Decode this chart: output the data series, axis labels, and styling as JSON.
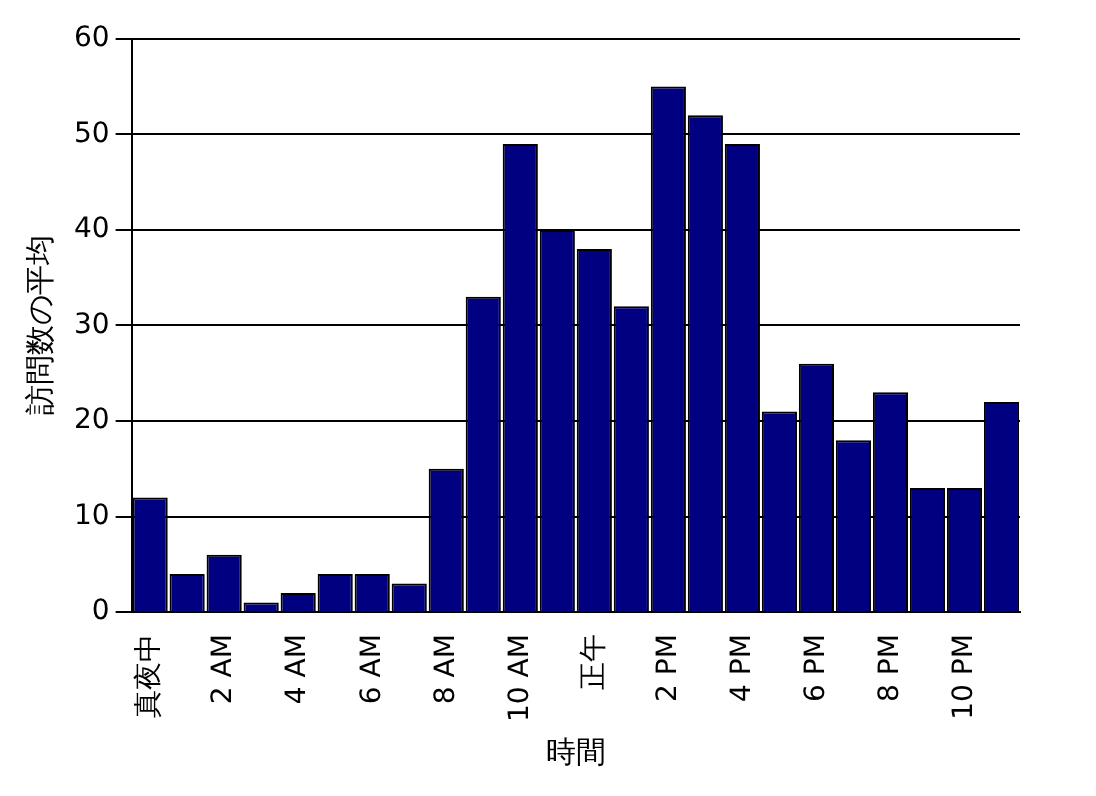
{
  "chart_data": {
    "type": "bar",
    "xlabel": "時間",
    "ylabel": "訪問数の平均",
    "categories": [
      "真夜中",
      null,
      "2 AM",
      null,
      "4 AM",
      null,
      "6 AM",
      null,
      "8 AM",
      null,
      "10 AM",
      null,
      "正午",
      null,
      "2 PM",
      null,
      "4 PM",
      null,
      "6 PM",
      null,
      "8 PM",
      null,
      "10 PM",
      null
    ],
    "values": [
      12,
      4,
      6,
      1,
      2,
      4,
      4,
      3,
      15,
      33,
      49,
      40,
      38,
      32,
      55,
      52,
      49,
      21,
      26,
      18,
      23,
      13,
      13,
      22
    ],
    "color": "#000080",
    "ylim": [
      0,
      60
    ],
    "yticks": [
      0,
      10,
      20,
      30,
      40,
      50,
      60
    ],
    "grid": "y",
    "legend": false
  }
}
